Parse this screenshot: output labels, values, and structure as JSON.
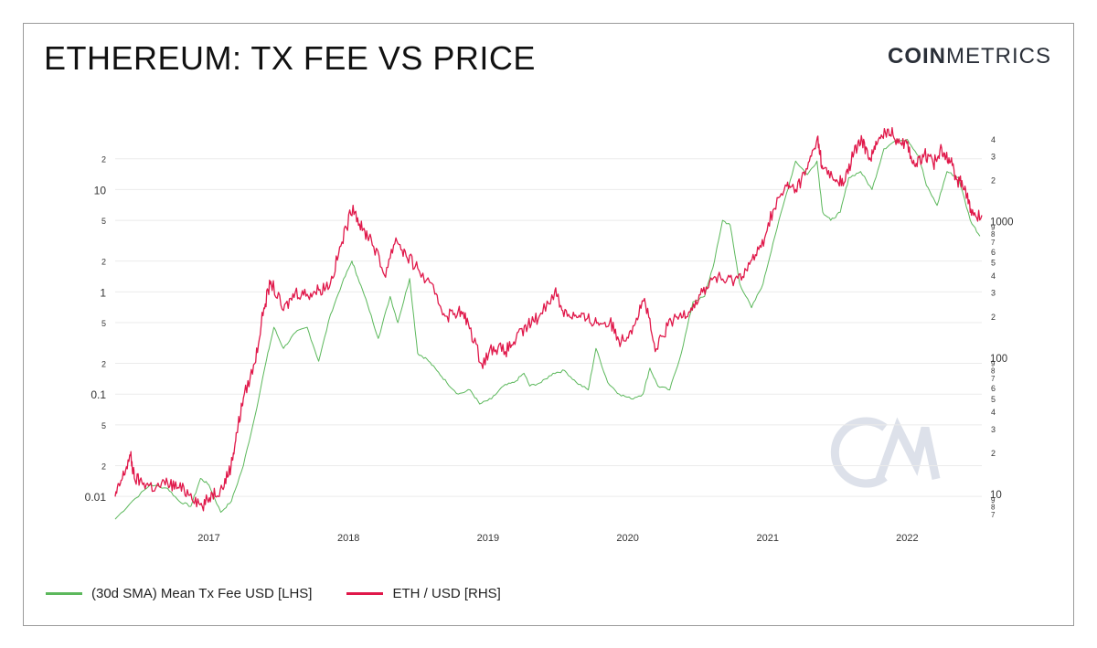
{
  "header": {
    "title": "ETHEREUM: TX FEE VS PRICE",
    "brand_bold": "COIN",
    "brand_light": "METRICS"
  },
  "colors": {
    "fee": "#5cb85c",
    "price": "#e0184a",
    "grid": "#ebebeb",
    "watermark": "#dde1ea"
  },
  "legend": [
    {
      "label": "(30d SMA) Mean Tx Fee USD [LHS]",
      "color": "#5cb85c"
    },
    {
      "label": "ETH / USD [RHS]",
      "color": "#e0184a"
    }
  ],
  "chart_data": {
    "type": "line",
    "title": "ETHEREUM: TX FEE VS PRICE",
    "x_range": [
      "2016-05-01",
      "2022-07-15"
    ],
    "x_ticks": [
      "2017",
      "2018",
      "2019",
      "2020",
      "2021",
      "2022"
    ],
    "x_tick_dates": [
      "2017-01-01",
      "2018-01-01",
      "2019-01-01",
      "2020-01-01",
      "2021-01-01",
      "2022-01-01"
    ],
    "y_left": {
      "scale": "log",
      "range": [
        0.006,
        40
      ],
      "major": [
        {
          "v": 0.01,
          "label": "0.01"
        },
        {
          "v": 0.1,
          "label": "0.1"
        },
        {
          "v": 1,
          "label": "1"
        },
        {
          "v": 10,
          "label": "10"
        }
      ],
      "minor": [
        {
          "v": 0.02,
          "label": "2"
        },
        {
          "v": 0.05,
          "label": "5"
        },
        {
          "v": 0.2,
          "label": "2"
        },
        {
          "v": 0.5,
          "label": "5"
        },
        {
          "v": 2,
          "label": "2"
        },
        {
          "v": 5,
          "label": "5"
        },
        {
          "v": 20,
          "label": "2"
        }
      ]
    },
    "y_right": {
      "scale": "log",
      "range": [
        6.5,
        4800
      ],
      "major": [
        {
          "v": 10,
          "label": "10"
        },
        {
          "v": 100,
          "label": "100"
        },
        {
          "v": 1000,
          "label": "1000"
        }
      ],
      "mid": [
        {
          "v": 20,
          "label": "2"
        },
        {
          "v": 30,
          "label": "3"
        },
        {
          "v": 40,
          "label": "4"
        },
        {
          "v": 50,
          "label": "5"
        },
        {
          "v": 60,
          "label": "6"
        },
        {
          "v": 200,
          "label": "2"
        },
        {
          "v": 300,
          "label": "3"
        },
        {
          "v": 400,
          "label": "4"
        },
        {
          "v": 500,
          "label": "5"
        },
        {
          "v": 600,
          "label": "6"
        },
        {
          "v": 2000,
          "label": "2"
        },
        {
          "v": 3000,
          "label": "3"
        },
        {
          "v": 4000,
          "label": "4"
        }
      ],
      "small": [
        {
          "v": 7,
          "label": "7"
        },
        {
          "v": 8,
          "label": "8"
        },
        {
          "v": 9,
          "label": "9"
        },
        {
          "v": 70,
          "label": "7"
        },
        {
          "v": 80,
          "label": "8"
        },
        {
          "v": 90,
          "label": "9"
        },
        {
          "v": 700,
          "label": "7"
        },
        {
          "v": 800,
          "label": "8"
        },
        {
          "v": 900,
          "label": "9"
        }
      ]
    },
    "series": [
      {
        "name": "(30d SMA) Mean Tx Fee USD [LHS]",
        "axis": "left",
        "color": "#5cb85c",
        "x": [
          "2016-05-01",
          "2016-06-15",
          "2016-08-01",
          "2016-09-15",
          "2016-10-15",
          "2016-11-15",
          "2016-12-10",
          "2017-01-01",
          "2017-02-01",
          "2017-03-01",
          "2017-04-01",
          "2017-05-01",
          "2017-06-01",
          "2017-06-20",
          "2017-07-15",
          "2017-08-15",
          "2017-09-15",
          "2017-10-15",
          "2017-11-15",
          "2017-12-15",
          "2018-01-10",
          "2018-01-25",
          "2018-02-20",
          "2018-03-20",
          "2018-04-20",
          "2018-05-10",
          "2018-06-10",
          "2018-07-01",
          "2018-07-25",
          "2018-08-20",
          "2018-09-15",
          "2018-10-15",
          "2018-11-15",
          "2018-12-10",
          "2019-01-10",
          "2019-02-10",
          "2019-03-10",
          "2019-04-05",
          "2019-04-20",
          "2019-05-20",
          "2019-06-20",
          "2019-07-20",
          "2019-08-20",
          "2019-09-20",
          "2019-10-10",
          "2019-11-10",
          "2019-12-10",
          "2020-01-10",
          "2020-02-10",
          "2020-02-28",
          "2020-03-20",
          "2020-04-20",
          "2020-05-20",
          "2020-06-20",
          "2020-07-20",
          "2020-08-15",
          "2020-09-05",
          "2020-09-25",
          "2020-10-20",
          "2020-11-20",
          "2020-12-20",
          "2021-01-15",
          "2021-02-15",
          "2021-03-15",
          "2021-04-15",
          "2021-05-10",
          "2021-05-25",
          "2021-06-15",
          "2021-07-10",
          "2021-08-01",
          "2021-09-01",
          "2021-10-01",
          "2021-11-01",
          "2021-12-01",
          "2022-01-01",
          "2022-02-01",
          "2022-02-20",
          "2022-03-20",
          "2022-04-15",
          "2022-05-15",
          "2022-06-15",
          "2022-07-10"
        ],
        "y": [
          0.006,
          0.009,
          0.013,
          0.012,
          0.009,
          0.008,
          0.015,
          0.013,
          0.007,
          0.009,
          0.02,
          0.06,
          0.22,
          0.45,
          0.28,
          0.4,
          0.45,
          0.21,
          0.6,
          1.2,
          2.0,
          1.4,
          0.75,
          0.35,
          0.9,
          0.5,
          1.35,
          0.25,
          0.22,
          0.17,
          0.13,
          0.1,
          0.11,
          0.08,
          0.09,
          0.12,
          0.13,
          0.16,
          0.12,
          0.13,
          0.16,
          0.17,
          0.13,
          0.11,
          0.28,
          0.13,
          0.1,
          0.09,
          0.1,
          0.18,
          0.12,
          0.11,
          0.25,
          0.8,
          0.9,
          2.0,
          5.0,
          4.5,
          1.2,
          0.7,
          1.2,
          3.0,
          8.0,
          19.0,
          14.0,
          19.0,
          6.0,
          5.0,
          6.0,
          13.0,
          15.0,
          10.0,
          25.0,
          30.0,
          31.0,
          21.0,
          11.0,
          7.0,
          15.0,
          13.0,
          5.0,
          3.5
        ]
      },
      {
        "name": "ETH / USD [RHS]",
        "axis": "right",
        "color": "#e0184a",
        "x": [
          "2016-05-01",
          "2016-05-20",
          "2016-06-10",
          "2016-06-20",
          "2016-07-15",
          "2016-08-15",
          "2016-09-15",
          "2016-10-15",
          "2016-11-15",
          "2016-12-15",
          "2017-01-10",
          "2017-02-05",
          "2017-02-28",
          "2017-03-15",
          "2017-04-01",
          "2017-05-01",
          "2017-05-25",
          "2017-06-12",
          "2017-07-15",
          "2017-08-15",
          "2017-09-15",
          "2017-10-15",
          "2017-11-15",
          "2017-12-15",
          "2018-01-13",
          "2018-02-06",
          "2018-03-01",
          "2018-04-05",
          "2018-05-05",
          "2018-06-01",
          "2018-07-01",
          "2018-08-15",
          "2018-09-13",
          "2018-10-15",
          "2018-11-10",
          "2018-12-15",
          "2019-01-15",
          "2019-02-15",
          "2019-03-15",
          "2019-04-15",
          "2019-05-15",
          "2019-06-25",
          "2019-07-15",
          "2019-08-15",
          "2019-09-15",
          "2019-10-15",
          "2019-11-15",
          "2019-12-15",
          "2020-01-15",
          "2020-02-14",
          "2020-03-13",
          "2020-04-15",
          "2020-05-15",
          "2020-06-15",
          "2020-07-15",
          "2020-08-15",
          "2020-09-15",
          "2020-10-15",
          "2020-11-15",
          "2020-12-15",
          "2021-01-15",
          "2021-02-20",
          "2021-03-15",
          "2021-04-15",
          "2021-05-11",
          "2021-05-25",
          "2021-06-25",
          "2021-07-20",
          "2021-08-15",
          "2021-09-05",
          "2021-09-25",
          "2021-10-15",
          "2021-11-10",
          "2021-12-05",
          "2021-12-31",
          "2022-01-22",
          "2022-02-15",
          "2022-03-10",
          "2022-04-01",
          "2022-04-20",
          "2022-05-12",
          "2022-06-01",
          "2022-06-18",
          "2022-07-15"
        ],
        "y": [
          9.5,
          13,
          19,
          13,
          12,
          11,
          12,
          11,
          10,
          8,
          10,
          11,
          16,
          28,
          50,
          90,
          230,
          360,
          220,
          300,
          290,
          310,
          350,
          700,
          1300,
          850,
          750,
          400,
          750,
          550,
          450,
          290,
          200,
          220,
          180,
          90,
          120,
          110,
          135,
          170,
          200,
          310,
          220,
          200,
          190,
          180,
          180,
          130,
          170,
          270,
          110,
          170,
          200,
          230,
          300,
          390,
          360,
          380,
          480,
          640,
          1200,
          1800,
          1700,
          2400,
          4100,
          2400,
          2000,
          1900,
          3200,
          3900,
          2900,
          3700,
          4700,
          4000,
          3700,
          2500,
          3100,
          2600,
          3400,
          2900,
          2000,
          1800,
          1100,
          1100
        ]
      }
    ]
  }
}
